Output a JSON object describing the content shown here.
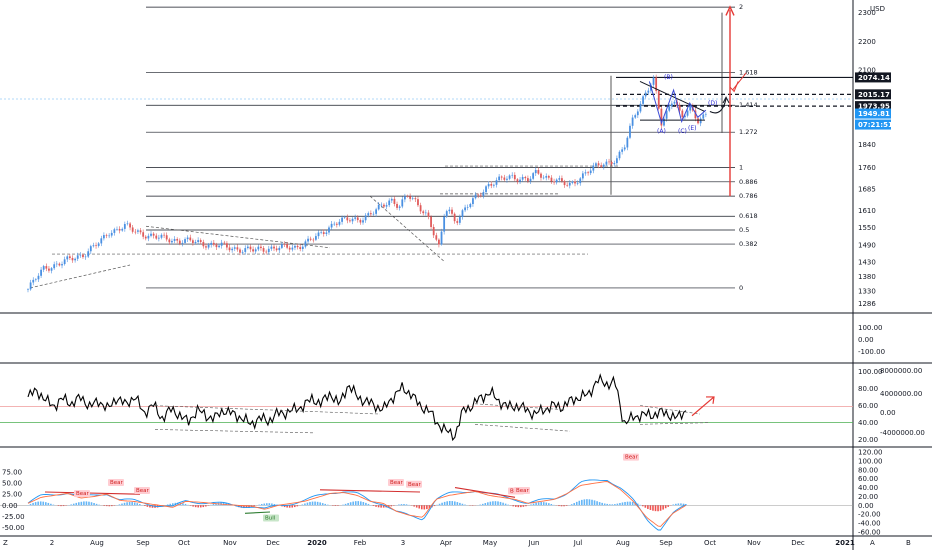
{
  "currency": "USD",
  "time_axis": [
    "2",
    "Aug",
    "Sep",
    "Oct",
    "Nov",
    "Dec",
    "2020",
    "Feb",
    "3",
    "Apr",
    "May",
    "Jun",
    "Jul",
    "Aug",
    "Sep",
    "Oct",
    "Nov",
    "Dec",
    "2021"
  ],
  "corner_labels": {
    "left": "Z",
    "middle": "A",
    "right": "B"
  },
  "price_labels": [
    {
      "value": "2074.14",
      "bg": "#131722",
      "fg": "#ffffff"
    },
    {
      "value": "2015.17",
      "bg": "#131722",
      "fg": "#ffffff"
    },
    {
      "value": "1973.95",
      "bg": "#131722",
      "fg": "#ffffff"
    },
    {
      "value": "1949.81",
      "bg": "#2196f3",
      "fg": "#ffffff"
    },
    {
      "value": "07:21:51",
      "bg": "#2196f3",
      "fg": "#ffffff"
    }
  ],
  "wave_labels": [
    "(B)",
    "(A)",
    "(C)",
    "(E)",
    "(D)"
  ],
  "annotations": {
    "bear": [
      "Bear",
      "Bear",
      "Bear",
      "Bear",
      "Bear",
      "Bear",
      "Bear",
      "Bear"
    ],
    "bull": [
      "Bull"
    ]
  },
  "chart_data": [
    {
      "type": "candlestick",
      "title": "",
      "y_ticks": [
        2300,
        2200,
        2100,
        1840,
        1760,
        1685,
        1610,
        1550,
        1490,
        1430,
        1380,
        1330,
        1286
      ],
      "ylim": [
        1270,
        2330
      ],
      "fib_levels": [
        {
          "label": "2",
          "value": 2319
        },
        {
          "label": "1.618",
          "value": 2091
        },
        {
          "label": "1.414",
          "value": 1977
        },
        {
          "label": "1.272",
          "value": 1883
        },
        {
          "label": "1",
          "value": 1760
        },
        {
          "label": "0.886",
          "value": 1710
        },
        {
          "label": "0.786",
          "value": 1660
        },
        {
          "label": "0.618",
          "value": 1590
        },
        {
          "label": "0.5",
          "value": 1542
        },
        {
          "label": "0.382",
          "value": 1493
        },
        {
          "label": "0",
          "value": 1340
        }
      ],
      "price_path": [
        [
          0,
          1335
        ],
        [
          0.02,
          1410
        ],
        [
          0.04,
          1425
        ],
        [
          0.07,
          1460
        ],
        [
          0.09,
          1500
        ],
        [
          0.1,
          1535
        ],
        [
          0.12,
          1555
        ],
        [
          0.13,
          1540
        ],
        [
          0.16,
          1515
        ],
        [
          0.19,
          1505
        ],
        [
          0.22,
          1495
        ],
        [
          0.25,
          1480
        ],
        [
          0.28,
          1470
        ],
        [
          0.3,
          1480
        ],
        [
          0.33,
          1480
        ],
        [
          0.36,
          1520
        ],
        [
          0.38,
          1570
        ],
        [
          0.41,
          1580
        ],
        [
          0.43,
          1605
        ],
        [
          0.45,
          1650
        ],
        [
          0.46,
          1625
        ],
        [
          0.47,
          1660
        ],
        [
          0.48,
          1640
        ],
        [
          0.495,
          1595
        ],
        [
          0.505,
          1510
        ],
        [
          0.51,
          1470
        ],
        [
          0.515,
          1590
        ],
        [
          0.52,
          1620
        ],
        [
          0.53,
          1575
        ],
        [
          0.55,
          1640
        ],
        [
          0.57,
          1700
        ],
        [
          0.6,
          1730
        ],
        [
          0.62,
          1715
        ],
        [
          0.63,
          1740
        ],
        [
          0.65,
          1720
        ],
        [
          0.67,
          1695
        ],
        [
          0.69,
          1740
        ],
        [
          0.71,
          1770
        ],
        [
          0.73,
          1790
        ],
        [
          0.74,
          1835
        ],
        [
          0.75,
          1935
        ],
        [
          0.755,
          1965
        ],
        [
          0.765,
          2020
        ],
        [
          0.775,
          2065
        ],
        [
          0.785,
          1910
        ],
        [
          0.8,
          2010
        ],
        [
          0.81,
          1930
        ],
        [
          0.82,
          1965
        ],
        [
          0.83,
          1925
        ],
        [
          0.84,
          1950
        ]
      ],
      "projection": [
        [
          0.87,
          2030
        ],
        [
          0.88,
          2060
        ],
        [
          0.9,
          2300
        ]
      ]
    },
    {
      "type": "line",
      "name": "",
      "y_ticks": [
        100,
        80,
        60,
        40,
        20
      ],
      "right_ticks": [
        "8000000.00",
        "4000000.00",
        "0.00",
        "-4000000.00"
      ],
      "ylim": [
        15,
        105
      ],
      "reference_lines": [
        {
          "value": 40,
          "color": "#4caf50"
        },
        {
          "value": 59,
          "color": "#ef9a9a"
        }
      ],
      "values": [
        70,
        78,
        65,
        60,
        68,
        62,
        70,
        58,
        66,
        55,
        70,
        60,
        72,
        50,
        62,
        45,
        55,
        50,
        40,
        55,
        48,
        45,
        55,
        50,
        46,
        38,
        45,
        42,
        50,
        52,
        55,
        60,
        68,
        62,
        75,
        60,
        85,
        70,
        65,
        60,
        55,
        70,
        80,
        75,
        60,
        55,
        40,
        30,
        25,
        55,
        60,
        70,
        75,
        65,
        58,
        60,
        55,
        50,
        55,
        60,
        58,
        65,
        70,
        72,
        90,
        85,
        88,
        40,
        45,
        50,
        48,
        52,
        50,
        45,
        55
      ]
    },
    {
      "type": "line",
      "name": "",
      "y_ticks": [
        120,
        100,
        80,
        60,
        40,
        20,
        0,
        -20,
        -40,
        -60
      ],
      "left_ticks": [
        75,
        50,
        25,
        0,
        -25,
        -50
      ],
      "ylim": [
        -60,
        120
      ],
      "values": [
        5,
        20,
        25,
        30,
        18,
        22,
        28,
        12,
        10,
        5,
        0,
        -5,
        10,
        8,
        5,
        2,
        0,
        -2,
        -10,
        0,
        5,
        10,
        20,
        30,
        32,
        25,
        10,
        5,
        -15,
        -25,
        -30,
        15,
        25,
        30,
        35,
        25,
        20,
        15,
        5,
        10,
        15,
        30,
        50,
        55,
        60,
        40,
        10,
        -30,
        -55,
        -20,
        0
      ]
    }
  ]
}
